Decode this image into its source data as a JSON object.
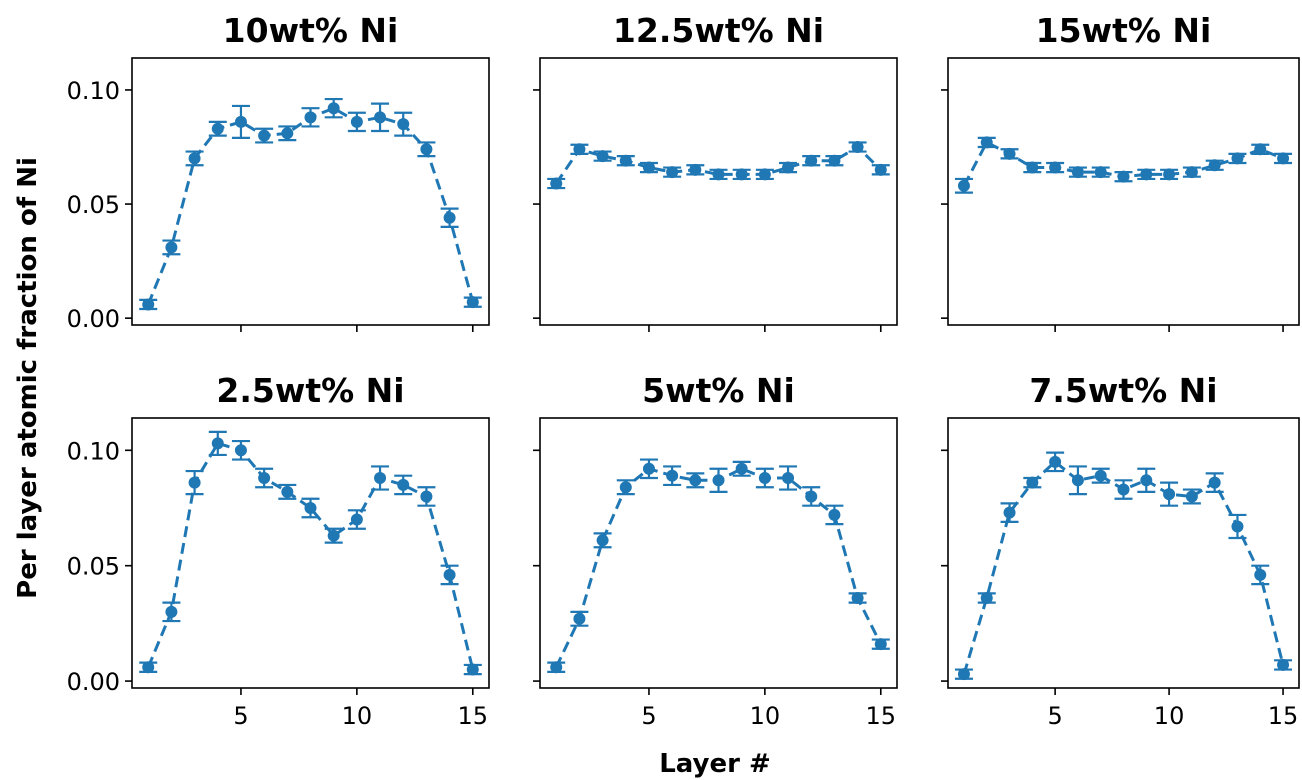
{
  "chart_data": {
    "type": "line",
    "layout": "2x3 subplots",
    "xlabel": "Layer #",
    "ylabel": "Per layer atomic fraction of Ni",
    "xlim": [
      0.3,
      15.7
    ],
    "ylim": [
      -0.003,
      0.114
    ],
    "xticks": [
      5,
      10,
      15
    ],
    "xtick_labels": [
      "5",
      "10",
      "15"
    ],
    "yticks": [
      0.0,
      0.05,
      0.1
    ],
    "ytick_labels": [
      "0.00",
      "0.05",
      "0.10"
    ],
    "line_style": "dashed",
    "marker": "circle",
    "error_bars": true,
    "color": "#1f77b4",
    "x": [
      1,
      2,
      3,
      4,
      5,
      6,
      7,
      8,
      9,
      10,
      11,
      12,
      13,
      14,
      15
    ],
    "panels": [
      {
        "title": "10wt% Ni",
        "values": [
          0.006,
          0.031,
          0.07,
          0.083,
          0.086,
          0.08,
          0.081,
          0.088,
          0.092,
          0.086,
          0.088,
          0.085,
          0.074,
          0.044,
          0.007
        ],
        "errors": [
          0.002,
          0.003,
          0.003,
          0.003,
          0.007,
          0.003,
          0.003,
          0.004,
          0.004,
          0.004,
          0.006,
          0.005,
          0.003,
          0.004,
          0.002
        ]
      },
      {
        "title": "12.5wt% Ni",
        "values": [
          0.059,
          0.074,
          0.071,
          0.069,
          0.066,
          0.064,
          0.065,
          0.063,
          0.063,
          0.063,
          0.066,
          0.069,
          0.069,
          0.075,
          0.065
        ],
        "errors": [
          0.002,
          0.002,
          0.002,
          0.002,
          0.002,
          0.002,
          0.002,
          0.002,
          0.002,
          0.002,
          0.002,
          0.002,
          0.002,
          0.002,
          0.002
        ]
      },
      {
        "title": "15wt% Ni",
        "values": [
          0.058,
          0.077,
          0.072,
          0.066,
          0.066,
          0.064,
          0.064,
          0.062,
          0.063,
          0.063,
          0.064,
          0.067,
          0.07,
          0.074,
          0.07
        ],
        "errors": [
          0.003,
          0.002,
          0.002,
          0.002,
          0.002,
          0.002,
          0.002,
          0.002,
          0.002,
          0.002,
          0.002,
          0.002,
          0.002,
          0.002,
          0.002
        ]
      },
      {
        "title": "2.5wt% Ni",
        "values": [
          0.006,
          0.03,
          0.086,
          0.103,
          0.1,
          0.088,
          0.082,
          0.075,
          0.063,
          0.07,
          0.088,
          0.085,
          0.08,
          0.046,
          0.005
        ],
        "errors": [
          0.002,
          0.004,
          0.005,
          0.005,
          0.004,
          0.004,
          0.003,
          0.004,
          0.003,
          0.004,
          0.005,
          0.004,
          0.004,
          0.004,
          0.002
        ]
      },
      {
        "title": "5wt% Ni",
        "values": [
          0.006,
          0.027,
          0.061,
          0.084,
          0.092,
          0.089,
          0.087,
          0.087,
          0.092,
          0.088,
          0.088,
          0.08,
          0.072,
          0.036,
          0.016
        ],
        "errors": [
          0.002,
          0.003,
          0.003,
          0.003,
          0.004,
          0.004,
          0.003,
          0.005,
          0.003,
          0.004,
          0.005,
          0.004,
          0.004,
          0.002,
          0.002
        ]
      },
      {
        "title": "7.5wt% Ni",
        "values": [
          0.003,
          0.036,
          0.073,
          0.086,
          0.095,
          0.087,
          0.089,
          0.083,
          0.087,
          0.081,
          0.08,
          0.086,
          0.067,
          0.046,
          0.007
        ],
        "errors": [
          0.002,
          0.002,
          0.004,
          0.002,
          0.004,
          0.006,
          0.003,
          0.004,
          0.005,
          0.005,
          0.003,
          0.004,
          0.005,
          0.004,
          0.002
        ]
      }
    ]
  }
}
